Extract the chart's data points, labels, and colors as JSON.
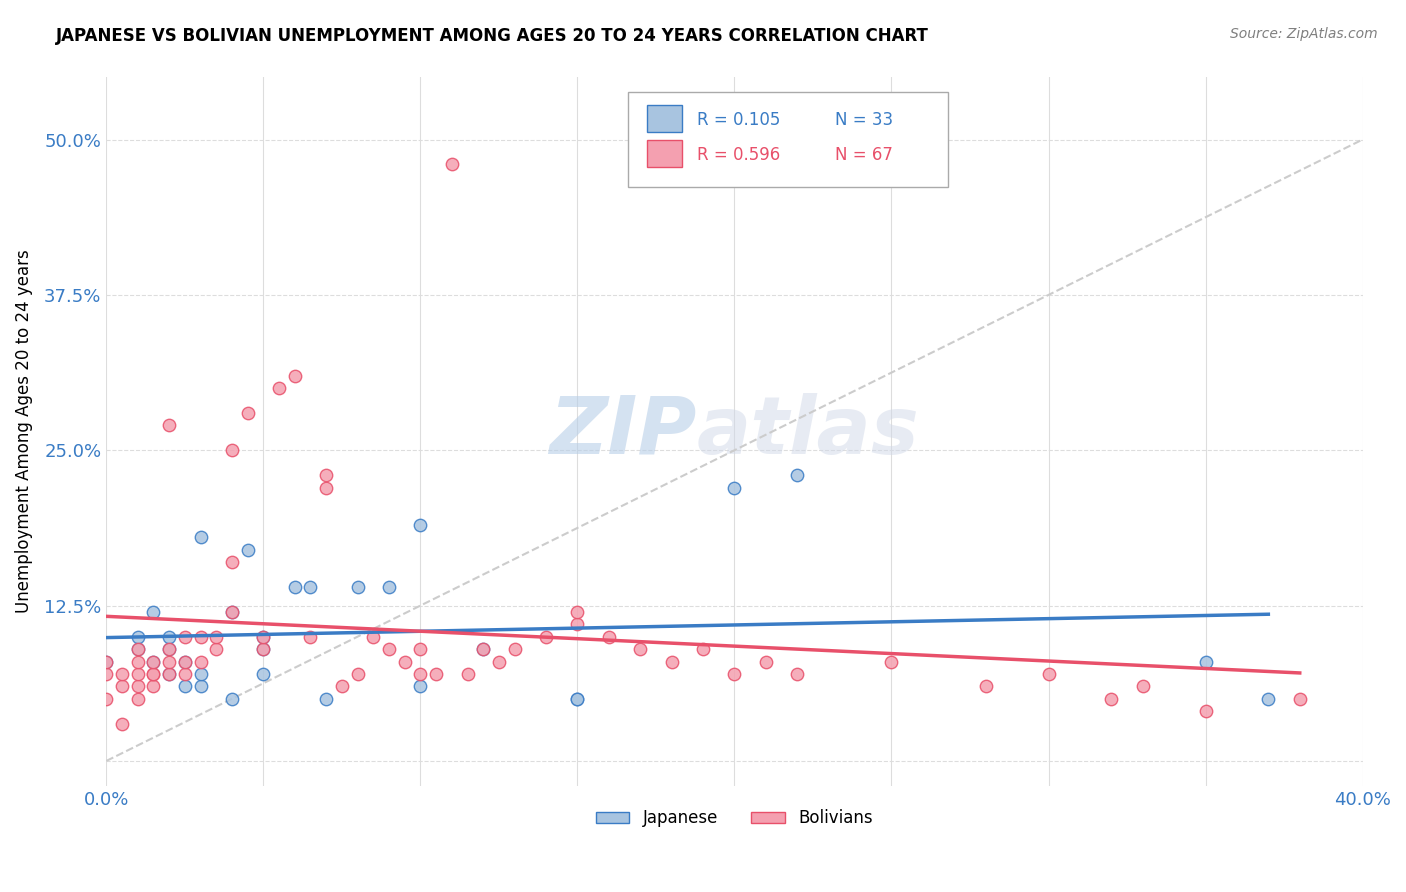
{
  "title": "JAPANESE VS BOLIVIAN UNEMPLOYMENT AMONG AGES 20 TO 24 YEARS CORRELATION CHART",
  "source": "Source: ZipAtlas.com",
  "ylabel": "Unemployment Among Ages 20 to 24 years",
  "xlim": [
    0,
    0.4
  ],
  "ylim": [
    -0.02,
    0.55
  ],
  "japanese_color": "#a8c4e0",
  "bolivian_color": "#f4a0b0",
  "japanese_line_color": "#3a7cc5",
  "bolivian_line_color": "#e8506a",
  "ref_line_color": "#cccccc",
  "legend_R_japanese": "R = 0.105",
  "legend_N_japanese": "N = 33",
  "legend_R_bolivian": "R = 0.596",
  "legend_N_bolivian": "N = 67",
  "watermark_zip": "ZIP",
  "watermark_atlas": "atlas",
  "japanese_x": [
    0.0,
    0.01,
    0.01,
    0.015,
    0.015,
    0.02,
    0.02,
    0.02,
    0.025,
    0.025,
    0.03,
    0.03,
    0.03,
    0.04,
    0.04,
    0.045,
    0.05,
    0.05,
    0.05,
    0.06,
    0.065,
    0.07,
    0.08,
    0.09,
    0.1,
    0.1,
    0.12,
    0.15,
    0.15,
    0.2,
    0.22,
    0.35,
    0.37
  ],
  "japanese_y": [
    0.08,
    0.09,
    0.1,
    0.08,
    0.12,
    0.07,
    0.09,
    0.1,
    0.06,
    0.08,
    0.06,
    0.07,
    0.18,
    0.05,
    0.12,
    0.17,
    0.07,
    0.09,
    0.1,
    0.14,
    0.14,
    0.05,
    0.14,
    0.14,
    0.06,
    0.19,
    0.09,
    0.05,
    0.05,
    0.22,
    0.23,
    0.08,
    0.05
  ],
  "bolivian_x": [
    0.0,
    0.0,
    0.0,
    0.005,
    0.005,
    0.005,
    0.01,
    0.01,
    0.01,
    0.01,
    0.01,
    0.015,
    0.015,
    0.015,
    0.015,
    0.02,
    0.02,
    0.02,
    0.02,
    0.025,
    0.025,
    0.025,
    0.03,
    0.03,
    0.035,
    0.035,
    0.04,
    0.04,
    0.04,
    0.045,
    0.05,
    0.05,
    0.055,
    0.06,
    0.065,
    0.07,
    0.07,
    0.075,
    0.08,
    0.085,
    0.09,
    0.095,
    0.1,
    0.1,
    0.105,
    0.11,
    0.115,
    0.12,
    0.125,
    0.13,
    0.14,
    0.15,
    0.15,
    0.16,
    0.17,
    0.18,
    0.19,
    0.2,
    0.21,
    0.22,
    0.25,
    0.28,
    0.3,
    0.32,
    0.33,
    0.35,
    0.38
  ],
  "bolivian_y": [
    0.05,
    0.07,
    0.08,
    0.03,
    0.06,
    0.07,
    0.05,
    0.06,
    0.07,
    0.08,
    0.09,
    0.06,
    0.07,
    0.07,
    0.08,
    0.07,
    0.08,
    0.09,
    0.27,
    0.07,
    0.08,
    0.1,
    0.08,
    0.1,
    0.09,
    0.1,
    0.12,
    0.16,
    0.25,
    0.28,
    0.09,
    0.1,
    0.3,
    0.31,
    0.1,
    0.22,
    0.23,
    0.06,
    0.07,
    0.1,
    0.09,
    0.08,
    0.07,
    0.09,
    0.07,
    0.48,
    0.07,
    0.09,
    0.08,
    0.09,
    0.1,
    0.11,
    0.12,
    0.1,
    0.09,
    0.08,
    0.09,
    0.07,
    0.08,
    0.07,
    0.08,
    0.06,
    0.07,
    0.05,
    0.06,
    0.04,
    0.05
  ]
}
